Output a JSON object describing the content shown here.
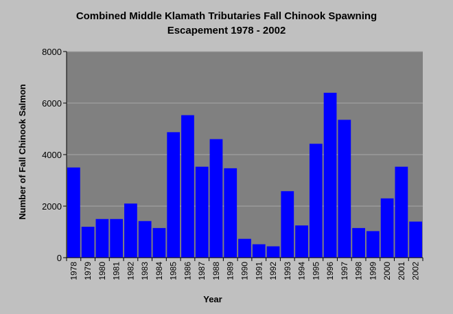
{
  "chart_data": {
    "type": "bar",
    "title": "Combined Middle Klamath Tributaries Fall Chinook Spawning",
    "subtitle": "Escapement 1978 - 2002",
    "xlabel": "Year",
    "ylabel": "Number of Fall Chinook Salmon",
    "ylim": [
      0,
      8000
    ],
    "yticks": [
      0,
      2000,
      4000,
      6000,
      8000
    ],
    "grid": true,
    "categories": [
      "1978",
      "1979",
      "1980",
      "1981",
      "1982",
      "1983",
      "1984",
      "1985",
      "1986",
      "1987",
      "1988",
      "1989",
      "1990",
      "1991",
      "1992",
      "1993",
      "1994",
      "1995",
      "1996",
      "1997",
      "1998",
      "1999",
      "2000",
      "2001",
      "2002"
    ],
    "values": [
      3500,
      1200,
      1500,
      1500,
      2100,
      1420,
      1150,
      4870,
      5530,
      3530,
      4600,
      3470,
      730,
      520,
      440,
      2580,
      1250,
      4420,
      6400,
      5350,
      1150,
      1030,
      2300,
      3530,
      1400
    ],
    "bar_color": "#0000ff",
    "plot_background": "#808080"
  }
}
